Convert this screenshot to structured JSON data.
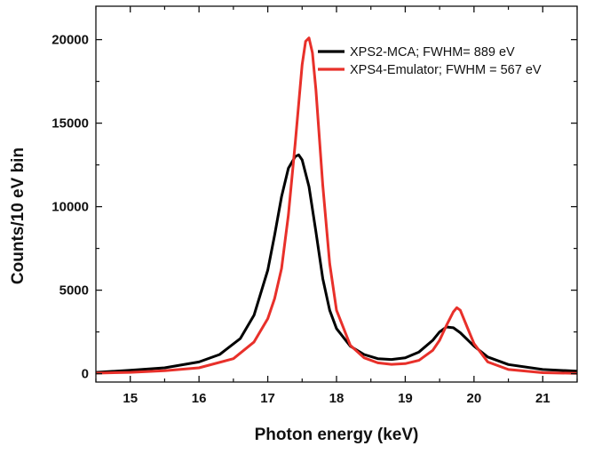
{
  "chart_data": {
    "type": "line",
    "xlabel": "Photon energy (keV)",
    "ylabel": "Counts/10 eV bin",
    "xlim": [
      14.5,
      21.5
    ],
    "ylim": [
      -500,
      22000
    ],
    "xticks": [
      15,
      16,
      17,
      18,
      19,
      20,
      21
    ],
    "yticks": [
      0,
      5000,
      10000,
      15000,
      20000
    ],
    "x_tick_labels": [
      "15",
      "16",
      "17",
      "18",
      "19",
      "20",
      "21"
    ],
    "y_tick_labels": [
      "0",
      "5000",
      "10000",
      "15000",
      "20000"
    ],
    "grid": false,
    "legend_position": "top-right",
    "series": [
      {
        "name": "XPS2-MCA; FWHM= 889 eV",
        "color": "#000000",
        "x": [
          14.5,
          15.0,
          15.5,
          16.0,
          16.3,
          16.6,
          16.8,
          17.0,
          17.1,
          17.2,
          17.3,
          17.4,
          17.45,
          17.5,
          17.6,
          17.7,
          17.8,
          17.9,
          18.0,
          18.2,
          18.4,
          18.6,
          18.8,
          19.0,
          19.2,
          19.4,
          19.5,
          19.6,
          19.7,
          19.8,
          20.0,
          20.2,
          20.5,
          21.0,
          21.5
        ],
        "y": [
          80,
          200,
          350,
          700,
          1150,
          2100,
          3500,
          6200,
          8300,
          10600,
          12300,
          13000,
          13100,
          12800,
          11200,
          8500,
          5700,
          3800,
          2700,
          1650,
          1150,
          900,
          850,
          950,
          1300,
          2000,
          2500,
          2800,
          2750,
          2450,
          1650,
          1000,
          550,
          250,
          150
        ]
      },
      {
        "name": "XPS4-Emulator; FWHM = 567 eV",
        "color": "#e8302a",
        "x": [
          14.5,
          15.0,
          15.5,
          16.0,
          16.5,
          16.8,
          17.0,
          17.1,
          17.2,
          17.3,
          17.4,
          17.5,
          17.55,
          17.6,
          17.65,
          17.7,
          17.8,
          17.9,
          18.0,
          18.2,
          18.4,
          18.6,
          18.8,
          19.0,
          19.2,
          19.4,
          19.5,
          19.6,
          19.7,
          19.75,
          19.8,
          19.9,
          20.0,
          20.2,
          20.5,
          21.0,
          21.5
        ],
        "y": [
          30,
          80,
          180,
          350,
          900,
          1900,
          3300,
          4500,
          6300,
          9500,
          13800,
          18500,
          19900,
          20100,
          19200,
          17000,
          11300,
          6600,
          3800,
          1700,
          950,
          650,
          560,
          600,
          800,
          1400,
          2000,
          2900,
          3700,
          3950,
          3800,
          2800,
          1800,
          700,
          250,
          60,
          20
        ]
      }
    ]
  }
}
